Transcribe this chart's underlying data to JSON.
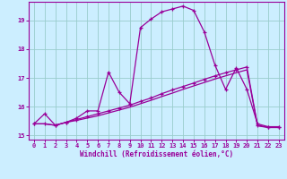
{
  "xlabel": "Windchill (Refroidissement éolien,°C)",
  "bg_color": "#cceeff",
  "line_color": "#990099",
  "grid_color": "#99cccc",
  "xlim": [
    -0.5,
    23.5
  ],
  "ylim": [
    14.85,
    19.65
  ],
  "yticks": [
    15,
    16,
    17,
    18,
    19
  ],
  "xticks": [
    0,
    1,
    2,
    3,
    4,
    5,
    6,
    7,
    8,
    9,
    10,
    11,
    12,
    13,
    14,
    15,
    16,
    17,
    18,
    19,
    20,
    21,
    22,
    23
  ],
  "line1_x": [
    0,
    1,
    2,
    3,
    4,
    5,
    6,
    7,
    8,
    9,
    10,
    11,
    12,
    13,
    14,
    15,
    16,
    17,
    18,
    19,
    20,
    21,
    22,
    23
  ],
  "line1_y": [
    15.4,
    15.75,
    15.35,
    15.45,
    15.6,
    15.85,
    15.85,
    17.2,
    16.5,
    16.1,
    18.75,
    19.05,
    19.3,
    19.4,
    19.5,
    19.35,
    18.6,
    17.45,
    16.6,
    17.35,
    16.6,
    15.4,
    15.3,
    15.3
  ],
  "line2_x": [
    0,
    1,
    2,
    3,
    4,
    5,
    6,
    7,
    8,
    9,
    10,
    11,
    12,
    13,
    14,
    15,
    16,
    17,
    18,
    19,
    20,
    21,
    22,
    23
  ],
  "line2_y": [
    15.4,
    15.4,
    15.35,
    15.45,
    15.55,
    15.65,
    15.75,
    15.85,
    15.95,
    16.05,
    16.18,
    16.3,
    16.45,
    16.58,
    16.7,
    16.82,
    16.95,
    17.07,
    17.18,
    17.28,
    17.38,
    15.35,
    15.28,
    15.28
  ],
  "line3_x": [
    0,
    1,
    2,
    3,
    4,
    5,
    6,
    7,
    8,
    9,
    10,
    11,
    12,
    13,
    14,
    15,
    16,
    17,
    18,
    19,
    20,
    21,
    22,
    23
  ],
  "line3_y": [
    15.4,
    15.4,
    15.35,
    15.45,
    15.52,
    15.6,
    15.68,
    15.78,
    15.88,
    15.98,
    16.1,
    16.22,
    16.35,
    16.47,
    16.6,
    16.72,
    16.84,
    16.96,
    17.07,
    17.18,
    17.28,
    15.33,
    15.27,
    15.27
  ]
}
